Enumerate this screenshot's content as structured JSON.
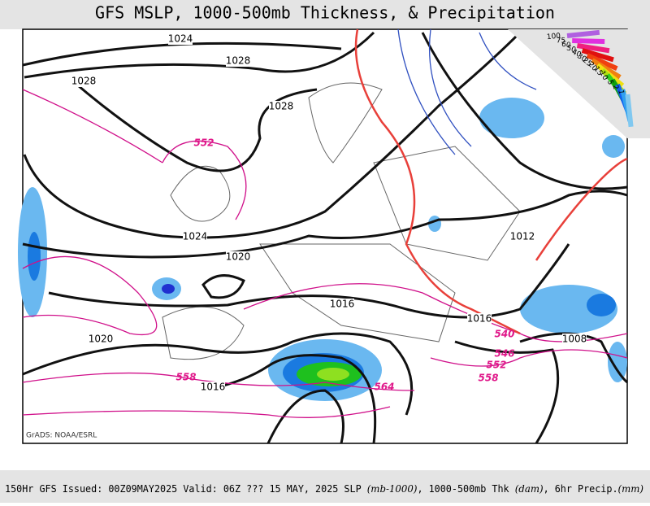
{
  "header": {
    "title": "GFS MSLP, 1000-500mb Thickness, & Precipitation"
  },
  "pressure_labels": [
    1024,
    1028,
    1028,
    1028,
    1024,
    1020,
    1016,
    1012,
    1016,
    1008,
    1020,
    1016
  ],
  "thickness_labels": [
    552,
    540,
    546,
    552,
    558,
    558,
    564
  ],
  "legend": {
    "labels": [
      100,
      75,
      60,
      50,
      40,
      30,
      25,
      20,
      15,
      10,
      5,
      2,
      1
    ]
  },
  "credit": "GrADS: NOAA/ESRL",
  "footer": {
    "parts": [
      "150Hr GFS Issued: 00Z09MAY2025 Valid: 06Z ??? 15 MAY, 2025  SLP ",
      "(mb-1000)",
      ", 1000-500mb Thk ",
      "(dam)",
      ", 6hr Precip.",
      "(mm)"
    ]
  }
}
